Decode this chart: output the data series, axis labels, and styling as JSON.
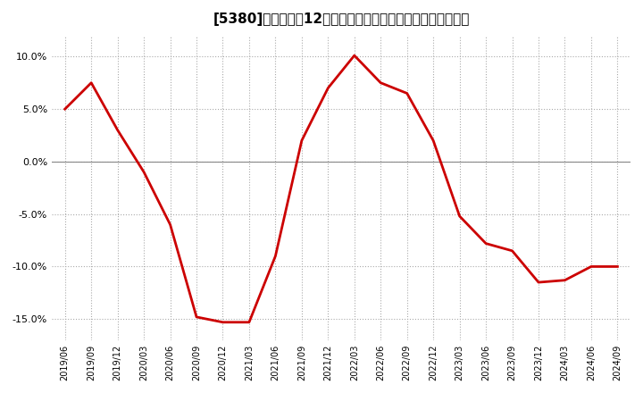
{
  "title_plain": "[5380]　売上高の12か月移動合計の対前年同期増減率の推移",
  "line_color": "#cc0000",
  "background_color": "#ffffff",
  "grid_color": "#aaaaaa",
  "x_labels": [
    "2019/06",
    "2019/09",
    "2019/12",
    "2020/03",
    "2020/06",
    "2020/09",
    "2020/12",
    "2021/03",
    "2021/06",
    "2021/09",
    "2021/12",
    "2022/03",
    "2022/06",
    "2022/09",
    "2022/12",
    "2023/03",
    "2023/06",
    "2023/09",
    "2023/12",
    "2024/03",
    "2024/06",
    "2024/09"
  ],
  "values": [
    5.0,
    7.5,
    3.0,
    -1.0,
    -6.0,
    -14.8,
    -15.3,
    -15.3,
    -9.0,
    2.0,
    7.0,
    10.1,
    7.5,
    6.5,
    2.0,
    -5.2,
    -7.8,
    -8.5,
    -11.5,
    -11.3,
    -10.0,
    -10.0
  ],
  "ylim": [
    -17.0,
    12.0
  ],
  "yticks": [
    -15.0,
    -10.0,
    -5.0,
    0.0,
    5.0,
    10.0
  ],
  "line_width": 2.0,
  "fig_width": 7.2,
  "fig_height": 4.4,
  "dpi": 100
}
